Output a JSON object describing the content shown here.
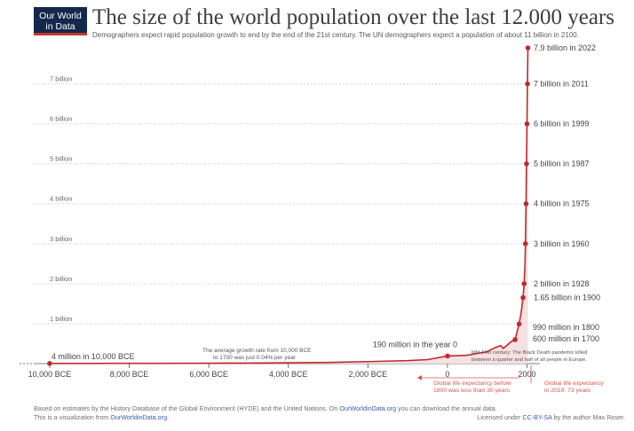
{
  "logo": {
    "line1": "Our World",
    "line2": "in Data"
  },
  "chart_data": {
    "type": "area",
    "title": "The size of the world population over the last 12.000 years",
    "subtitle": "Demographers expect rapid population growth to end by the end of the 21st century. The UN demographers expect a population of about 11 billion in 2100.",
    "xlim": [
      -10400,
      2100
    ],
    "ylim": [
      0,
      7.9
    ],
    "y_ticks": [
      {
        "value": 1,
        "label": "1 billion"
      },
      {
        "value": 2,
        "label": "2 billion"
      },
      {
        "value": 3,
        "label": "3 billion"
      },
      {
        "value": 4,
        "label": "4 billion"
      },
      {
        "value": 5,
        "label": "5 billion"
      },
      {
        "value": 6,
        "label": "6 billion"
      },
      {
        "value": 7,
        "label": "7 billion"
      }
    ],
    "x_ticks": [
      {
        "value": -10000,
        "label": "10,000 BCE"
      },
      {
        "value": -8000,
        "label": "8,000 BCE"
      },
      {
        "value": -6000,
        "label": "6,000 BCE"
      },
      {
        "value": -4000,
        "label": "4,000 BCE"
      },
      {
        "value": -2000,
        "label": "2,000 BCE"
      },
      {
        "value": 0,
        "label": "0"
      },
      {
        "value": 2000,
        "label": "2000"
      }
    ],
    "series": [
      {
        "name": "World population (billions)",
        "x": [
          -10000,
          -9000,
          -8000,
          -7000,
          -6000,
          -5000,
          -4000,
          -3000,
          -2000,
          -1000,
          -500,
          0,
          500,
          1000,
          1200,
          1340,
          1400,
          1500,
          1600,
          1700,
          1800,
          1850,
          1900,
          1928,
          1950,
          1960,
          1975,
          1987,
          1999,
          2011,
          2022
        ],
        "values": [
          0.004,
          0.005,
          0.007,
          0.008,
          0.011,
          0.014,
          0.02,
          0.03,
          0.05,
          0.075,
          0.1,
          0.19,
          0.21,
          0.3,
          0.4,
          0.45,
          0.38,
          0.46,
          0.55,
          0.6,
          0.99,
          1.26,
          1.65,
          2,
          2.5,
          3,
          4,
          5,
          6,
          7,
          7.9
        ]
      }
    ],
    "markers": [
      {
        "x": -10000,
        "y": 0.004,
        "label": "4 million in 10,000 BCE"
      },
      {
        "x": 0,
        "y": 0.19,
        "label": "190 million in the year 0"
      },
      {
        "x": 1700,
        "y": 0.6,
        "label": "600 million in 1700"
      },
      {
        "x": 1800,
        "y": 0.99,
        "label": "990 million in 1800"
      },
      {
        "x": 1900,
        "y": 1.65,
        "label": "1.65 billion in 1900"
      },
      {
        "x": 1928,
        "y": 2,
        "label": "2 billion in 1928"
      },
      {
        "x": 1960,
        "y": 3,
        "label": "3 billion in 1960"
      },
      {
        "x": 1975,
        "y": 4,
        "label": "4 billion in 1975"
      },
      {
        "x": 1987,
        "y": 5,
        "label": "5 billion in 1987"
      },
      {
        "x": 1999,
        "y": 6,
        "label": "6 billion in 1999"
      },
      {
        "x": 2011,
        "y": 7,
        "label": "7 billion in 2011"
      },
      {
        "x": 2022,
        "y": 7.9,
        "label": "7.9 billion in 2022"
      }
    ],
    "annotations": {
      "growth_rate": [
        "The average growth rate from 10,000 BCE",
        "to 1700 was just  0.04% per year"
      ],
      "black_death": [
        "Mid 14th century: The Black Death pandemic killed",
        "between a quarter and half of all people in Europe."
      ],
      "life_before": [
        "Global life expectancy before",
        "1800 was less than 30 years"
      ],
      "life_2019": [
        "Global life expectancy",
        "in 2019: 73 years"
      ]
    }
  },
  "footer": {
    "line1_pre": "Based on estimates by the History Database of the Global Environment (HYDE) and the United Nations. On ",
    "line1_link": "OurWorldinData.org",
    "line1_post": " you can download the annual data.",
    "line2_pre": "This is a visualization from ",
    "line2_link": "OurWorldinData.org",
    "line2_post": ".",
    "license_pre": "Licensed under ",
    "license_link": "CC-BY-SA",
    "license_post": " by the author Max Roser."
  },
  "colors": {
    "line": "#c0292e",
    "area": "#f6e0e1",
    "grid": "#cfcfcf",
    "annotation_red": "#d9534f",
    "brand": "#13284c"
  }
}
